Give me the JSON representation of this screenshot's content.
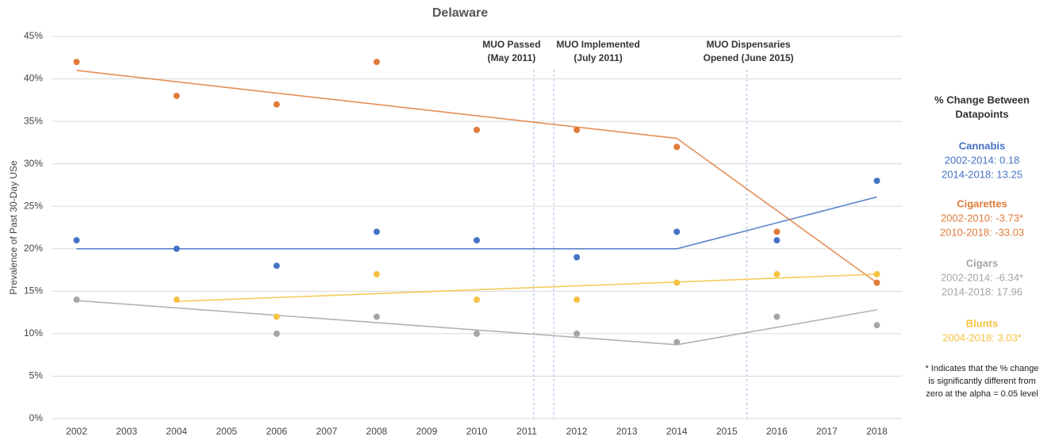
{
  "chart_data": {
    "type": "scatter",
    "title": "Delaware",
    "y_label": "Prevalence of Past 30-Day USe",
    "x": [
      2002,
      2004,
      2006,
      2008,
      2010,
      2012,
      2014,
      2016,
      2018
    ],
    "xlim": [
      2001.5,
      2018.5
    ],
    "xticks": [
      2002,
      2003,
      2004,
      2005,
      2006,
      2007,
      2008,
      2009,
      2010,
      2011,
      2012,
      2013,
      2014,
      2015,
      2016,
      2017,
      2018
    ],
    "ylim": [
      0,
      45
    ],
    "yticks": [
      {
        "value": 0,
        "label": "0%"
      },
      {
        "value": 5,
        "label": "5%"
      },
      {
        "value": 10,
        "label": "10%"
      },
      {
        "value": 15,
        "label": "15%"
      },
      {
        "value": 20,
        "label": "20%"
      },
      {
        "value": 25,
        "label": "25%"
      },
      {
        "value": 30,
        "label": "30%"
      },
      {
        "value": 35,
        "label": "35%"
      },
      {
        "value": 40,
        "label": "40%"
      },
      {
        "value": 45,
        "label": "45%"
      }
    ],
    "grid": true,
    "series": [
      {
        "name": "Cannabis",
        "color": "#4472c4",
        "values": [
          21,
          20,
          18,
          22,
          21,
          19,
          22,
          21,
          28
        ],
        "trend": {
          "x": [
            2002,
            2014,
            2018
          ],
          "values": [
            20,
            20,
            26.1
          ]
        },
        "stats": [
          "2002-2014: 0.18",
          "2014-2018: 13.25"
        ]
      },
      {
        "name": "Cigarettes",
        "color": "#e07b39",
        "values": [
          42,
          38,
          37,
          42,
          34,
          34,
          32,
          22,
          16
        ],
        "trend": {
          "x": [
            2002,
            2014,
            2018
          ],
          "values": [
            41,
            33,
            16
          ]
        },
        "stats": [
          "2002-2010: -3.73*",
          "2010-2018: -33.03"
        ]
      },
      {
        "name": "Cigars",
        "color": "#a5a5a5",
        "values": [
          14,
          null,
          10,
          12,
          10,
          10,
          9,
          12,
          11
        ],
        "trend": {
          "x": [
            2002,
            2014,
            2018
          ],
          "values": [
            13.9,
            8.7,
            12.8
          ]
        },
        "stats": [
          "2002-2014: -6.34*",
          "2014-2018: 17.96"
        ]
      },
      {
        "name": "Blunts",
        "color": "#f5c242",
        "values": [
          null,
          14,
          12,
          17,
          14,
          14,
          16,
          17,
          17
        ],
        "trend": {
          "x": [
            2004,
            2018
          ],
          "values": [
            13.8,
            17
          ]
        },
        "stats": [
          "2004-2018: 3.03*"
        ]
      }
    ],
    "annotations": [
      {
        "x": 2011.14,
        "text": [
          "MUO Passed",
          "(May 2011)"
        ]
      },
      {
        "x": 2011.54,
        "text": [
          "MUO Implemented",
          "(July 2011)"
        ]
      },
      {
        "x": 2015.4,
        "text": [
          "MUO Dispensaries",
          "Opened (June 2015)"
        ]
      }
    ],
    "panel_title": [
      "% Change Between",
      "Datapoints"
    ],
    "footnote": [
      "* Indicates that the % change",
      "is significantly different from",
      "zero at the alpha = 0.05 level"
    ]
  }
}
